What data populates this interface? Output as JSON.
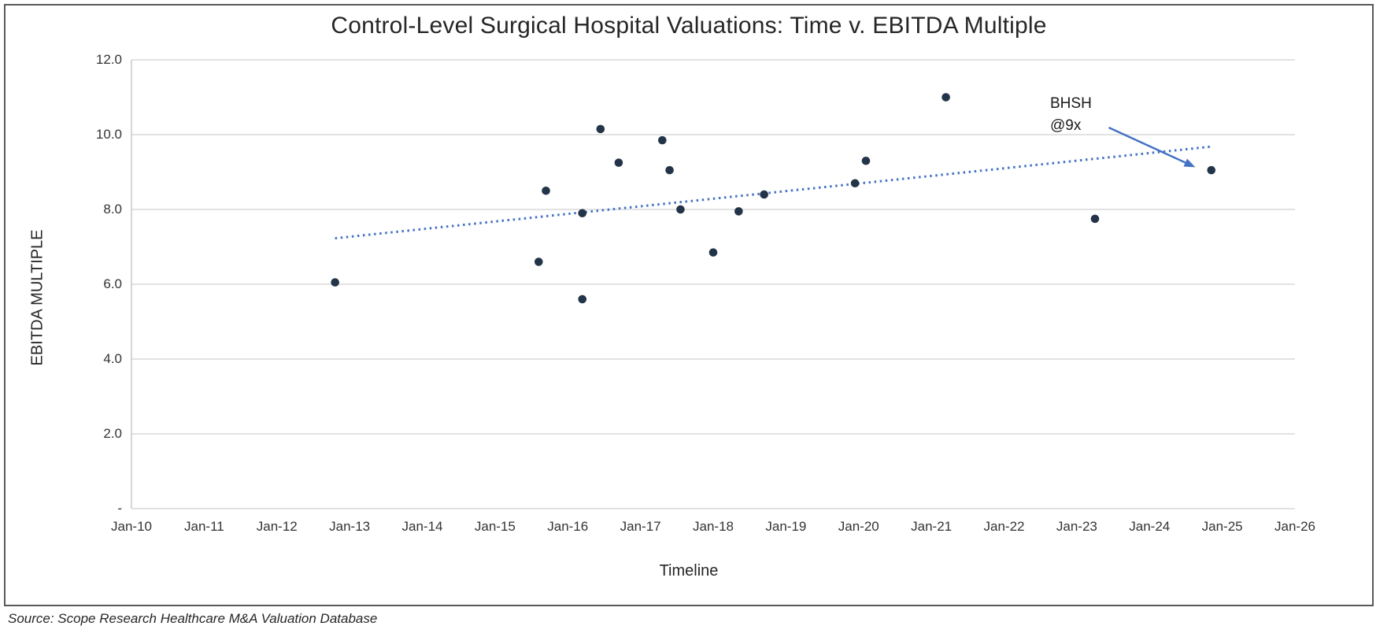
{
  "figure": {
    "title": "Control-Level Surgical Hospital Valuations: Time v. EBITDA Multiple",
    "source_note": "Source: Scope Research Healthcare M&A Valuation Database"
  },
  "chart_data": {
    "type": "scatter",
    "title": "Control-Level Surgical Hospital Valuations: Time v. EBITDA Multiple",
    "xlabel": "Timeline",
    "ylabel": "EBITDA MULTIPLE",
    "grid": "horizontal-only",
    "legend": "none",
    "x_axis": {
      "min": 2010,
      "max": 2026,
      "tick_interval_years": 1,
      "tick_labels": [
        "Jan-10",
        "Jan-11",
        "Jan-12",
        "Jan-13",
        "Jan-14",
        "Jan-15",
        "Jan-16",
        "Jan-17",
        "Jan-18",
        "Jan-19",
        "Jan-20",
        "Jan-21",
        "Jan-22",
        "Jan-23",
        "Jan-24",
        "Jan-25",
        "Jan-26"
      ]
    },
    "y_axis": {
      "min": 0,
      "max": 12,
      "tick_interval": 2,
      "tick_values": [
        0,
        2,
        4,
        6,
        8,
        10,
        12
      ],
      "tick_labels": [
        "-",
        "2.0",
        "4.0",
        "6.0",
        "8.0",
        "10.0",
        "12.0"
      ]
    },
    "points": [
      {
        "x": 2012.8,
        "y": 6.05,
        "date": "Oct-12"
      },
      {
        "x": 2015.6,
        "y": 6.6,
        "date": "Aug-15"
      },
      {
        "x": 2015.7,
        "y": 8.5,
        "date": "Sep-15"
      },
      {
        "x": 2016.2,
        "y": 5.6,
        "date": "Mar-16"
      },
      {
        "x": 2016.2,
        "y": 7.9,
        "date": "Mar-16"
      },
      {
        "x": 2016.45,
        "y": 10.15,
        "date": "Jun-16"
      },
      {
        "x": 2016.7,
        "y": 9.25,
        "date": "Sep-16"
      },
      {
        "x": 2017.3,
        "y": 9.85,
        "date": "Apr-17"
      },
      {
        "x": 2017.4,
        "y": 9.05,
        "date": "May-17"
      },
      {
        "x": 2017.55,
        "y": 8.0,
        "date": "Jul-17"
      },
      {
        "x": 2018.0,
        "y": 6.85,
        "date": "Jan-18"
      },
      {
        "x": 2018.35,
        "y": 7.95,
        "date": "May-18"
      },
      {
        "x": 2018.7,
        "y": 8.4,
        "date": "Sep-18"
      },
      {
        "x": 2019.95,
        "y": 8.7,
        "date": "Dec-19"
      },
      {
        "x": 2020.1,
        "y": 9.3,
        "date": "Feb-20"
      },
      {
        "x": 2021.2,
        "y": 11.0,
        "date": "Mar-21"
      },
      {
        "x": 2023.25,
        "y": 7.75,
        "date": "Apr-23"
      },
      {
        "x": 2024.85,
        "y": 9.05,
        "date": "Nov-24",
        "label": "BHSH @9x"
      }
    ],
    "trendline": {
      "style": "dotted",
      "x1": 2012.8,
      "y1": 7.23,
      "x2": 2024.85,
      "y2": 9.68
    },
    "annotation": {
      "line1": "BHSH",
      "line2": "@9x",
      "arrow_from": {
        "x": 2023.44,
        "y": 10.19
      },
      "arrow_to": {
        "x": 2024.63,
        "y": 9.13
      }
    },
    "colors": {
      "point": "#233449",
      "trend_line": "#4472c4",
      "arrow": "#4472c4",
      "gridline": "#d9d9d9",
      "axis_line": "#c9c9c9",
      "axis_text": "#333333",
      "border": "#595959"
    }
  }
}
